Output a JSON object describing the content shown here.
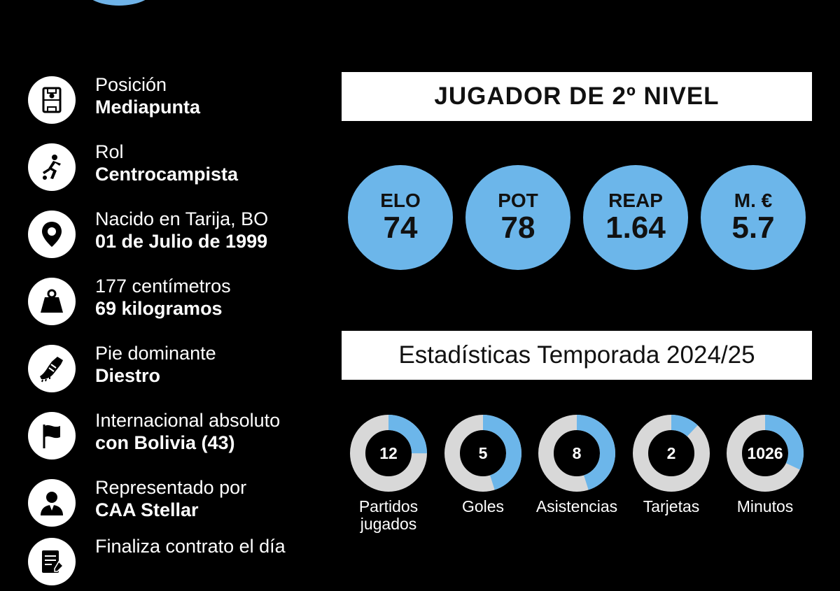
{
  "profile": {
    "items": [
      {
        "icon": "pitch-position-icon",
        "line1": "Posición",
        "line2": "Mediapunta"
      },
      {
        "icon": "player-kicking-icon",
        "line1": "Rol",
        "line2": "Centrocampista"
      },
      {
        "icon": "location-pin-icon",
        "line1": "Nacido en Tarija, BO",
        "line2": "01 de Julio de 1999"
      },
      {
        "icon": "weight-icon",
        "line1": "177 centímetros",
        "line2": "69 kilogramos"
      },
      {
        "icon": "football-boot-icon",
        "line1": "Pie dominante",
        "line2": "Diestro"
      },
      {
        "icon": "flag-icon",
        "line1": "Internacional absoluto",
        "line2": "con Bolivia (43)"
      },
      {
        "icon": "agent-icon",
        "line1": "Representado por",
        "line2": "CAA Stellar"
      },
      {
        "icon": "contract-icon",
        "line1": "Finaliza contrato el día",
        "line2": ""
      }
    ]
  },
  "level_banner": "JUGADOR DE 2º NIVEL",
  "metrics": [
    {
      "label": "ELO",
      "value": "74"
    },
    {
      "label": "POT",
      "value": "78"
    },
    {
      "label": "REAP",
      "value": "1.64"
    },
    {
      "label": "M. €",
      "value": "5.7"
    }
  ],
  "season_banner": "Estadísticas Temporada 2024/25",
  "stats": [
    {
      "value": "12",
      "label": "Partidos jugados",
      "fill": 0.25
    },
    {
      "value": "5",
      "label": "Goles",
      "fill": 0.45
    },
    {
      "value": "8",
      "label": "Asistencias",
      "fill": 0.45
    },
    {
      "value": "2",
      "label": "Tarjetas",
      "fill": 0.12
    },
    {
      "value": "1026",
      "label": "Minutos",
      "fill": 0.32
    }
  ],
  "colors": {
    "accent": "#6cb6ea",
    "ring_track": "#d8d8d8",
    "background": "#000000",
    "banner": "#ffffff"
  }
}
